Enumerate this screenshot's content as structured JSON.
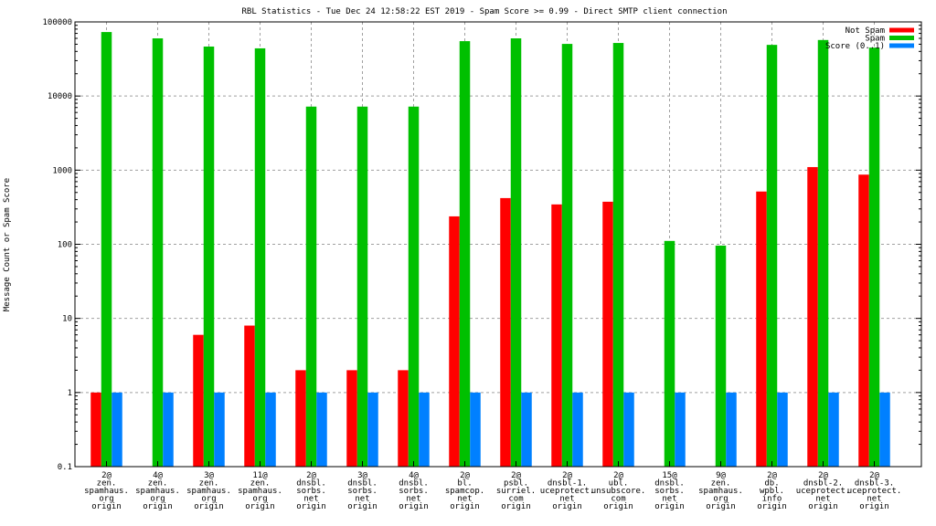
{
  "chart_data": {
    "type": "bar",
    "title": "RBL Statistics - Tue Dec 24 12:58:22 EST 2019 - Spam Score >= 0.99 - Direct SMTP client connection",
    "xlabel": "",
    "ylabel": "Message Count or Spam Score",
    "yscale": "log",
    "ylim": [
      0.1,
      100000
    ],
    "yticks": [
      "0.1",
      "1",
      "10",
      "100",
      "1000",
      "10000",
      "100000"
    ],
    "grid": true,
    "legend_position": "top-right",
    "categories": [
      [
        "2@",
        "zen.",
        "spamhaus.",
        "org",
        "origin"
      ],
      [
        "4@",
        "zen.",
        "spamhaus.",
        "org",
        "origin"
      ],
      [
        "3@",
        "zen.",
        "spamhaus.",
        "org",
        "origin"
      ],
      [
        "11@",
        "zen.",
        "spamhaus.",
        "org",
        "origin"
      ],
      [
        "2@",
        "dnsbl.",
        "sorbs.",
        "net",
        "origin"
      ],
      [
        "3@",
        "dnsbl.",
        "sorbs.",
        "net",
        "origin"
      ],
      [
        "4@",
        "dnsbl.",
        "sorbs.",
        "net",
        "origin"
      ],
      [
        "2@",
        "bl.",
        "spamcop.",
        "net",
        "origin"
      ],
      [
        "2@",
        "psbl.",
        "surriel.",
        "com",
        "origin"
      ],
      [
        "2@",
        "dnsbl-1.",
        "uceprotect.",
        "net",
        "origin"
      ],
      [
        "2@",
        "ubl.",
        "unsubscore.",
        "com",
        "origin"
      ],
      [
        "15@",
        "dnsbl.",
        "sorbs.",
        "net",
        "origin"
      ],
      [
        "9@",
        "zen.",
        "spamhaus.",
        "org",
        "origin"
      ],
      [
        "2@",
        "db.",
        "wpbl.",
        "info",
        "origin"
      ],
      [
        "2@",
        "dnsbl-2.",
        "uceprotect.",
        "net",
        "origin"
      ],
      [
        "2@",
        "dnsbl-3.",
        "uceprotect.",
        "net",
        "origin"
      ]
    ],
    "series": [
      {
        "name": "Not Spam",
        "color": "#ff0000",
        "values": [
          1,
          null,
          6,
          8,
          2,
          2,
          2,
          238,
          420,
          345,
          375,
          null,
          null,
          515,
          1100,
          870
        ]
      },
      {
        "name": "Spam",
        "color": "#00c000",
        "values": [
          73000,
          60000,
          46500,
          44000,
          7200,
          7200,
          7200,
          55000,
          60000,
          50500,
          52000,
          111,
          96,
          49000,
          57000,
          45000
        ]
      },
      {
        "name": "Score (0..1)",
        "color": "#0080ff",
        "values": [
          1,
          1,
          1,
          1,
          1,
          1,
          1,
          1,
          1,
          1,
          1,
          1,
          1,
          1,
          1,
          1
        ]
      }
    ]
  }
}
